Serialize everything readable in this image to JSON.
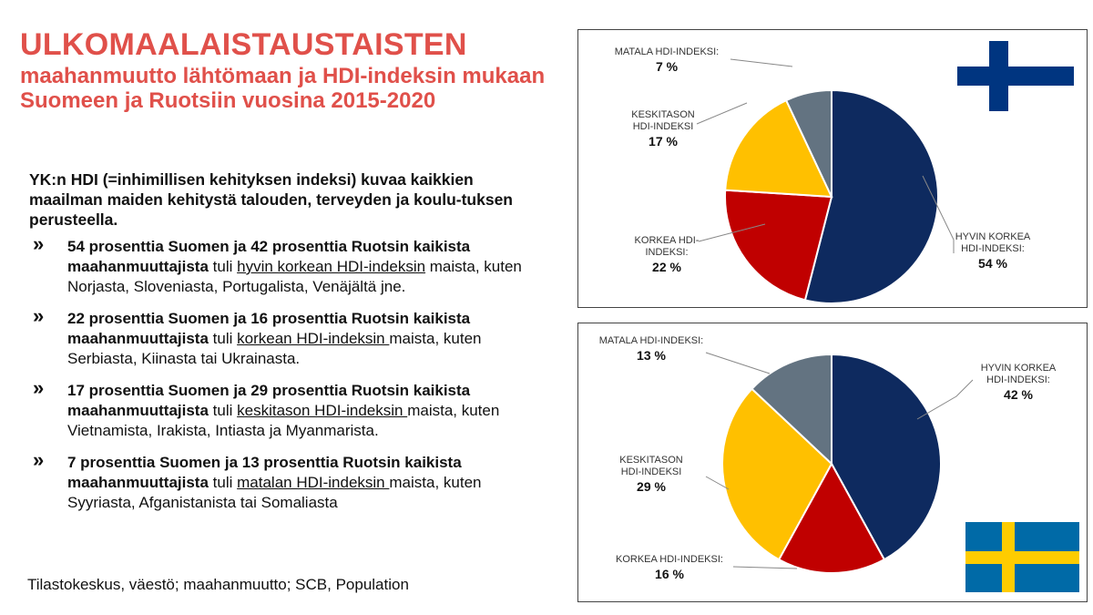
{
  "title": {
    "main": "ULKOMAALAISTAUSTAISTEN",
    "sub": "maahanmuutto lähtömaan ja HDI-indeksin mukaan Suomeen ja Ruotsiin vuosina 2015-2020"
  },
  "intro": "YK:n HDI (=inhimillisen kehityksen indeksi) kuvaa kaikkien maailman maiden kehitystä talouden, terveyden ja koulu-tuksen perusteella.",
  "bullets": [
    {
      "bold": "54 prosenttia Suomen ja 42 prosenttia Ruotsin kaikista maahanmuuttajista",
      "pre": " tuli ",
      "link": "hyvin korkean HDI-indeksin",
      "post": " maista, kuten Norjasta, Sloveniasta, Portugalista, Venäjältä jne."
    },
    {
      "bold": "22 prosenttia Suomen ja 16 prosenttia Ruotsin kaikista maahanmuuttajista",
      "pre": " tuli ",
      "link": "korkean HDI-indeksin ",
      "post": "maista, kuten Serbiasta, Kiinasta tai Ukrainasta."
    },
    {
      "bold": "17 prosenttia Suomen  ja 29 prosenttia Ruotsin kaikista maahanmuuttajista",
      "pre": " tuli ",
      "link": "keskitason HDI-indeksin ",
      "post": "maista, kuten Vietnamista, Irakista, Intiasta ja Myanmarista."
    },
    {
      "bold": "7 prosenttia Suomen ja 13 prosenttia Ruotsin kaikista maahanmuuttajista",
      "pre": " tuli ",
      "link": "matalan HDI-indeksin ",
      "post": "maista, kuten Syyriasta, Afganistanista tai Somaliasta"
    }
  ],
  "bullet_marker": "»",
  "source": "Tilastokeskus, väestö; maahanmuutto; SCB, Population",
  "colors": {
    "title": "#e0504a",
    "very_high": "#0e2a5f",
    "high": "#c00000",
    "medium": "#ffc000",
    "low": "#637381",
    "fi_flag_cross": "#003580",
    "se_flag_blue": "#006aa7",
    "se_flag_yellow": "#fecc00"
  },
  "icons": {
    "finland": "finland-flag-icon",
    "sweden": "sweden-flag-icon"
  },
  "chart_data": [
    {
      "type": "pie",
      "country_flag": "finland-flag-icon",
      "slices": [
        {
          "label_lines": [
            "HYVIN KORKEA",
            "HDI-INDEKSI:"
          ],
          "value": 54,
          "value_label": "54 %",
          "color": "#0e2a5f"
        },
        {
          "label_lines": [
            "KORKEA HDI-",
            "INDEKSI:"
          ],
          "value": 22,
          "value_label": "22 %",
          "color": "#c00000"
        },
        {
          "label_lines": [
            "KESKITASON",
            "HDI-INDEKSI"
          ],
          "value": 17,
          "value_label": "17 %",
          "color": "#ffc000"
        },
        {
          "label_lines": [
            "MATALA HDI-INDEKSI:"
          ],
          "value": 7,
          "value_label": "7 %",
          "color": "#637381"
        }
      ]
    },
    {
      "type": "pie",
      "country_flag": "sweden-flag-icon",
      "slices": [
        {
          "label_lines": [
            "HYVIN KORKEA",
            "HDI-INDEKSI:"
          ],
          "value": 42,
          "value_label": "42 %",
          "color": "#0e2a5f"
        },
        {
          "label_lines": [
            "KORKEA HDI-INDEKSI:"
          ],
          "value": 16,
          "value_label": "16 %",
          "color": "#c00000"
        },
        {
          "label_lines": [
            "KESKITASON",
            "HDI-INDEKSI"
          ],
          "value": 29,
          "value_label": "29 %",
          "color": "#ffc000"
        },
        {
          "label_lines": [
            "MATALA HDI-INDEKSI:"
          ],
          "value": 13,
          "value_label": "13 %",
          "color": "#637381"
        }
      ]
    }
  ]
}
